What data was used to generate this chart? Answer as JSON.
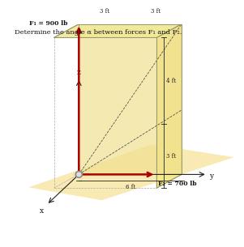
{
  "title": "Determine the angle α between forces F₁ and F₂.",
  "bg": "#ffffff",
  "box_face_color": "#f5e88a",
  "box_right_color": "#ede080",
  "box_top_color": "#f0e898",
  "edge_color": "#999966",
  "arrow_color": "#aa0000",
  "dim_color": "#222222",
  "axis_color": "#222222",
  "text_color": "#111111",
  "ground_color": "#f0c840",
  "labels": {
    "F1": "F₁ = 900 lb",
    "F2": "F₂ = 700 lb",
    "x": "x",
    "y": "y",
    "z": "z",
    "d1": "3 ft",
    "d2": "3 ft",
    "d3": "4 ft",
    "d4": "3 ft",
    "d5": "6 ft"
  },
  "ox": 3.1,
  "oy": 3.0
}
